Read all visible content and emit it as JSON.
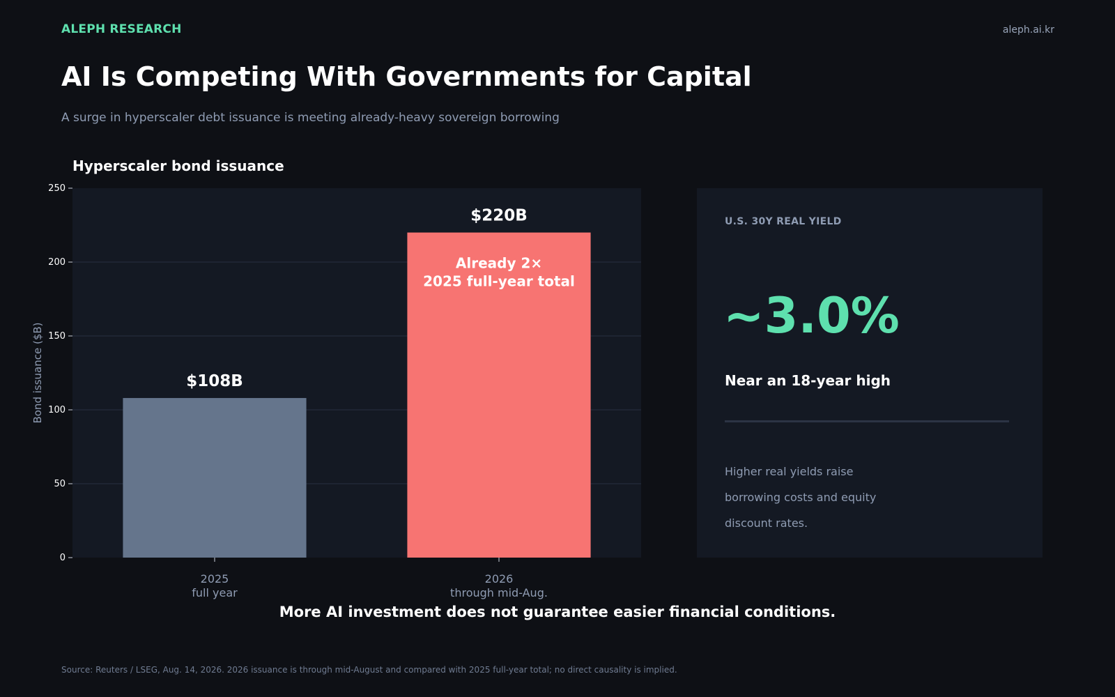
{
  "header": {
    "brand": "ALEPH RESEARCH",
    "site": "aleph.ai.kr",
    "title": "AI Is Competing With Governments for Capital",
    "subtitle": "A surge in hyperscaler debt issuance is meeting already-heavy sovereign borrowing"
  },
  "chart_data": {
    "type": "bar",
    "title": "Hyperscaler bond issuance",
    "ylabel": "Bond issuance ($B)",
    "xlabel": "",
    "ylim": [
      0,
      250
    ],
    "yticks": [
      0,
      50,
      100,
      150,
      200,
      250
    ],
    "grid": true,
    "categories": [
      {
        "line1": "2025",
        "line2": "full year"
      },
      {
        "line1": "2026",
        "line2": "through mid-Aug."
      }
    ],
    "values": [
      108,
      220
    ],
    "value_labels": [
      "$108B",
      "$220B"
    ],
    "colors": [
      "#65758c",
      "#f77472"
    ],
    "annotation": {
      "line1": "Already 2×",
      "line2": "2025 full-year total"
    }
  },
  "panel": {
    "label": "U.S. 30Y REAL YIELD",
    "value": "~3.0%",
    "caption": "Near an 18-year high",
    "note": "Higher real yields raise borrowing costs and equity discount rates."
  },
  "takeaway": "More AI investment does not guarantee easier financial conditions.",
  "source": "Source: Reuters / LSEG, Aug. 14, 2026. 2026 issuance is through mid-August and compared with 2025 full-year total; no direct causality is implied.",
  "colors": {
    "background": "#0e1015",
    "plot_background": "#141923",
    "accent": "#5ee0ae",
    "bar_2025": "#65758c",
    "bar_2026": "#f77472"
  }
}
